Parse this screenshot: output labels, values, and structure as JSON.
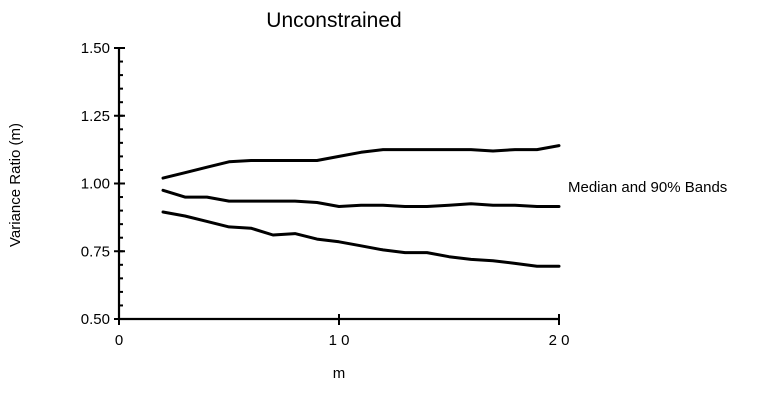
{
  "chart_data": {
    "type": "line",
    "title": "Unconstrained",
    "xlabel": "m",
    "ylabel": "Variance Ratio (m)",
    "xlim": [
      0,
      20
    ],
    "ylim": [
      0.5,
      1.5
    ],
    "x_ticks": [
      {
        "value": 0,
        "label": "0"
      },
      {
        "value": 10,
        "label": "1 0"
      },
      {
        "value": 20,
        "label": "2 0"
      }
    ],
    "y_ticks": [
      {
        "value": 0.5,
        "label": "0.50"
      },
      {
        "value": 0.75,
        "label": "0.75"
      },
      {
        "value": 1.0,
        "label": "1.00"
      },
      {
        "value": 1.25,
        "label": "1.25"
      },
      {
        "value": 1.5,
        "label": "1.50"
      }
    ],
    "minor_y_step": 0.05,
    "annotation": "Median and 90% Bands",
    "x": [
      2,
      3,
      4,
      5,
      6,
      7,
      8,
      9,
      10,
      11,
      12,
      13,
      14,
      15,
      16,
      17,
      18,
      19,
      20
    ],
    "series": [
      {
        "values": [
          1.02,
          1.04,
          1.06,
          1.08,
          1.085,
          1.085,
          1.085,
          1.085,
          1.1,
          1.115,
          1.125,
          1.125,
          1.125,
          1.125,
          1.125,
          1.12,
          1.125,
          1.125,
          1.14
        ]
      },
      {
        "values": [
          0.975,
          0.95,
          0.95,
          0.935,
          0.935,
          0.935,
          0.935,
          0.93,
          0.915,
          0.92,
          0.92,
          0.915,
          0.915,
          0.92,
          0.925,
          0.92,
          0.92,
          0.915,
          0.915
        ]
      },
      {
        "values": [
          0.895,
          0.88,
          0.86,
          0.84,
          0.835,
          0.81,
          0.815,
          0.795,
          0.785,
          0.77,
          0.755,
          0.745,
          0.745,
          0.73,
          0.72,
          0.715,
          0.705,
          0.695,
          0.695
        ]
      }
    ]
  }
}
